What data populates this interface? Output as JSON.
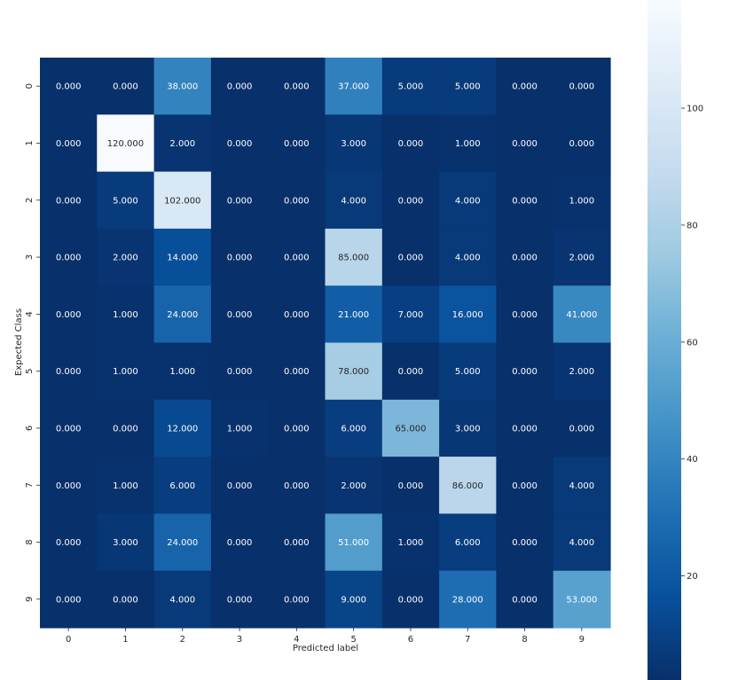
{
  "chart_data": {
    "type": "heatmap",
    "title": "",
    "xlabel": "Predicted label",
    "ylabel": "Expected Class",
    "x_categories": [
      "0",
      "1",
      "2",
      "3",
      "4",
      "5",
      "6",
      "7",
      "8",
      "9"
    ],
    "y_categories": [
      "0",
      "1",
      "2",
      "3",
      "4",
      "5",
      "6",
      "7",
      "8",
      "9"
    ],
    "values": [
      [
        0,
        0,
        38,
        0,
        0,
        37,
        5,
        5,
        0,
        0
      ],
      [
        0,
        120,
        2,
        0,
        0,
        3,
        0,
        1,
        0,
        0
      ],
      [
        0,
        5,
        102,
        0,
        0,
        4,
        0,
        4,
        0,
        1
      ],
      [
        0,
        2,
        14,
        0,
        0,
        85,
        0,
        4,
        0,
        2
      ],
      [
        0,
        1,
        24,
        0,
        0,
        21,
        7,
        16,
        0,
        41
      ],
      [
        0,
        1,
        1,
        0,
        0,
        78,
        0,
        5,
        0,
        2
      ],
      [
        0,
        0,
        12,
        1,
        0,
        6,
        65,
        3,
        0,
        0
      ],
      [
        0,
        1,
        6,
        0,
        0,
        2,
        0,
        86,
        0,
        4
      ],
      [
        0,
        3,
        24,
        0,
        0,
        51,
        1,
        6,
        0,
        4
      ],
      [
        0,
        0,
        4,
        0,
        0,
        9,
        0,
        28,
        0,
        53
      ]
    ],
    "value_format": "0.000",
    "colormap": "Blues",
    "colorbar": {
      "ticks": [
        20,
        40,
        60,
        80,
        100
      ],
      "range": [
        0,
        120
      ]
    },
    "colors": {
      "low": "#08306b",
      "high": "#f7fbff"
    }
  }
}
